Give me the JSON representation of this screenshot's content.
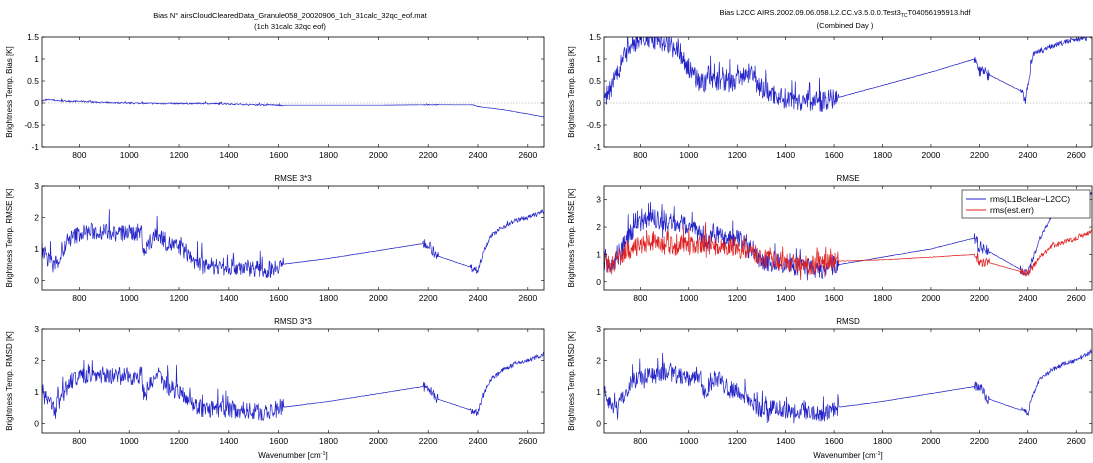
{
  "figure": {
    "left_title": "Bias N° airsCloudClearedData_Granule058_20020906_1ch_31calc_32qc_eof.mat",
    "left_subtitle": "(1ch 31calc 32qc eof)",
    "right_title": "Bias L2CC AIRS.2002.09.06.058.L2.CC.v3.5.0.0.Test3",
    "right_title_sub": "TC",
    "right_title_end": "T04056195913.hdf",
    "right_subtitle": "(Combined Day )",
    "xlabel": "Wavenumber [cm",
    "xlabel_sup": "-1",
    "xlabel_end": "]"
  },
  "colors": {
    "blue": "#2323c8",
    "red": "#e02020",
    "zero_line": "#9a9a9a"
  },
  "chart_data": [
    {
      "type": "line",
      "title": "",
      "ylabel": "Brightness Temp. Bias [K]",
      "xlim": [
        650,
        2665
      ],
      "ylim": [
        -1,
        1.5
      ],
      "xticks": [
        800,
        1000,
        1200,
        1400,
        1600,
        1800,
        2000,
        2200,
        2400,
        2600
      ],
      "yticks": [
        -1,
        -0.5,
        0,
        0.5,
        1,
        1.5
      ],
      "ytick_labels": [
        "-1",
        "-0.5",
        "0",
        "0.5",
        "1",
        "1.5"
      ],
      "zero_line": true,
      "series": [
        {
          "color": "blue",
          "noise": 0.02,
          "x": [
            650,
            680,
            700,
            750,
            800,
            900,
            1000,
            1100,
            1200,
            1300,
            1400,
            1500,
            1600,
            1800,
            2000,
            2200,
            2380,
            2400,
            2500,
            2600,
            2665
          ],
          "values": [
            0.05,
            0.08,
            0.06,
            0.04,
            0.04,
            0.01,
            0.0,
            -0.01,
            -0.01,
            -0.01,
            -0.02,
            -0.04,
            -0.05,
            -0.05,
            -0.05,
            -0.04,
            -0.04,
            -0.08,
            -0.15,
            -0.25,
            -0.32
          ]
        }
      ]
    },
    {
      "type": "line",
      "title": "RMSE 3*3",
      "ylabel": "Brightness Temp. RMSE [K]",
      "xlim": [
        650,
        2665
      ],
      "ylim": [
        -0.3,
        3
      ],
      "xticks": [
        800,
        1000,
        1200,
        1400,
        1600,
        1800,
        2000,
        2200,
        2400,
        2600
      ],
      "yticks": [
        0,
        1,
        2,
        3
      ],
      "ytick_labels": [
        "0",
        "1",
        "2",
        "3"
      ],
      "zero_line": false,
      "series": [
        {
          "color": "blue",
          "noise": 0.35,
          "x": [
            650,
            670,
            700,
            720,
            740,
            760,
            800,
            850,
            900,
            950,
            1000,
            1050,
            1060,
            1100,
            1130,
            1150,
            1210,
            1230,
            1260,
            1300,
            1400,
            1500,
            1550,
            1600,
            1800,
            2000,
            2200,
            2230,
            2380,
            2400,
            2420,
            2450,
            2500,
            2550,
            2600,
            2665
          ],
          "values": [
            1.0,
            0.7,
            0.5,
            0.7,
            1.0,
            1.3,
            1.5,
            1.55,
            1.55,
            1.5,
            1.5,
            1.55,
            0.9,
            1.4,
            1.4,
            1.2,
            1.0,
            0.9,
            0.6,
            0.45,
            0.45,
            0.4,
            0.3,
            0.5,
            0.7,
            0.95,
            1.2,
            0.8,
            0.4,
            0.3,
            0.9,
            1.4,
            1.7,
            1.9,
            2.0,
            2.2
          ]
        }
      ]
    },
    {
      "type": "line",
      "title": "RMSD 3*3",
      "ylabel": "Brightness Temp. RMSD [K]",
      "xlim": [
        650,
        2665
      ],
      "ylim": [
        -0.3,
        3
      ],
      "xticks": [
        800,
        1000,
        1200,
        1400,
        1600,
        1800,
        2000,
        2200,
        2400,
        2600
      ],
      "yticks": [
        0,
        1,
        2,
        3
      ],
      "ytick_labels": [
        "0",
        "1",
        "2",
        "3"
      ],
      "zero_line": false,
      "series": [
        {
          "color": "blue",
          "noise": 0.35,
          "x": [
            650,
            670,
            700,
            720,
            740,
            760,
            800,
            850,
            900,
            950,
            1000,
            1050,
            1060,
            1100,
            1130,
            1150,
            1210,
            1230,
            1260,
            1300,
            1400,
            1500,
            1550,
            1600,
            1800,
            2000,
            2200,
            2230,
            2380,
            2400,
            2420,
            2450,
            2500,
            2550,
            2600,
            2665
          ],
          "values": [
            1.0,
            0.7,
            0.5,
            0.7,
            1.0,
            1.3,
            1.5,
            1.55,
            1.55,
            1.5,
            1.5,
            1.55,
            0.9,
            1.4,
            1.4,
            1.2,
            1.0,
            0.9,
            0.6,
            0.45,
            0.45,
            0.4,
            0.3,
            0.5,
            0.7,
            0.95,
            1.2,
            0.8,
            0.4,
            0.3,
            0.9,
            1.4,
            1.7,
            1.9,
            2.0,
            2.2
          ]
        }
      ]
    },
    {
      "type": "line",
      "title": "",
      "ylabel": "Brightness Temp. Bias [K]",
      "xlim": [
        650,
        2665
      ],
      "ylim": [
        -1,
        1.5
      ],
      "xticks": [
        800,
        1000,
        1200,
        1400,
        1600,
        1800,
        2000,
        2200,
        2400,
        2600
      ],
      "yticks": [
        -1,
        -0.5,
        0,
        0.5,
        1,
        1.5
      ],
      "ytick_labels": [
        "-1",
        "-0.5",
        "0",
        "0.5",
        "1",
        "1.5"
      ],
      "zero_line": true,
      "series": [
        {
          "color": "blue",
          "noise": 0.3,
          "x": [
            650,
            680,
            700,
            730,
            760,
            800,
            830,
            900,
            950,
            1000,
            1050,
            1100,
            1150,
            1200,
            1230,
            1260,
            1300,
            1400,
            1500,
            1550,
            1600,
            1800,
            2000,
            2180,
            2200,
            2380,
            2390,
            2420,
            2500,
            2600,
            2665
          ],
          "values": [
            0.1,
            0.3,
            0.6,
            1.0,
            1.3,
            1.45,
            1.45,
            1.4,
            1.3,
            0.8,
            0.45,
            0.55,
            0.45,
            0.5,
            0.7,
            0.6,
            0.3,
            0.1,
            0.05,
            0.03,
            0.1,
            0.4,
            0.7,
            1.0,
            0.75,
            0.25,
            0.05,
            1.1,
            1.3,
            1.45,
            1.5
          ]
        }
      ]
    },
    {
      "type": "line",
      "title": "RMSE",
      "ylabel": "Brightness Temp. RMSE [K]",
      "xlim": [
        650,
        2665
      ],
      "ylim": [
        -0.3,
        3.5
      ],
      "xticks": [
        800,
        1000,
        1200,
        1400,
        1600,
        1800,
        2000,
        2200,
        2400,
        2600
      ],
      "yticks": [
        0,
        1,
        2,
        3
      ],
      "ytick_labels": [
        "0",
        "1",
        "2",
        "3"
      ],
      "zero_line": false,
      "legend": {
        "position": "top-right",
        "entries": [
          "rms(L1Bclear−L2CC)",
          "rms(est.err)"
        ]
      },
      "series": [
        {
          "name": "rms(L1Bclear−L2CC)",
          "color": "blue",
          "noise": 0.45,
          "x": [
            650,
            680,
            700,
            730,
            760,
            800,
            850,
            900,
            950,
            1000,
            1050,
            1080,
            1100,
            1150,
            1200,
            1250,
            1300,
            1400,
            1500,
            1550,
            1600,
            1800,
            2000,
            2180,
            2200,
            2380,
            2400,
            2450,
            2500,
            2600,
            2665
          ],
          "values": [
            0.8,
            0.5,
            0.8,
            1.3,
            1.8,
            2.2,
            2.3,
            2.2,
            2.1,
            2.1,
            1.7,
            1.4,
            1.8,
            1.5,
            1.6,
            1.2,
            0.8,
            0.6,
            0.5,
            0.45,
            0.6,
            0.9,
            1.2,
            1.6,
            1.3,
            0.4,
            0.3,
            1.6,
            2.4,
            2.9,
            3.2
          ]
        },
        {
          "name": "rms(est.err)",
          "color": "red",
          "noise": 0.45,
          "x": [
            650,
            680,
            700,
            730,
            760,
            800,
            850,
            900,
            950,
            1000,
            1050,
            1100,
            1150,
            1200,
            1250,
            1300,
            1400,
            1500,
            1600,
            1800,
            2000,
            2180,
            2200,
            2380,
            2400,
            2450,
            2500,
            2600,
            2665
          ],
          "values": [
            0.7,
            0.6,
            0.8,
            1.0,
            1.2,
            1.3,
            1.4,
            1.35,
            1.3,
            1.3,
            1.4,
            1.3,
            1.25,
            1.2,
            1.1,
            0.9,
            0.7,
            0.6,
            0.75,
            0.8,
            0.9,
            1.0,
            0.8,
            0.35,
            0.3,
            0.9,
            1.3,
            1.6,
            1.85
          ]
        }
      ]
    },
    {
      "type": "line",
      "title": "RMSD",
      "ylabel": "Brightness Temp. RMSD [K]",
      "xlim": [
        650,
        2665
      ],
      "ylim": [
        -0.3,
        3
      ],
      "xticks": [
        800,
        1000,
        1200,
        1400,
        1600,
        1800,
        2000,
        2200,
        2400,
        2600
      ],
      "yticks": [
        0,
        1,
        2,
        3
      ],
      "ytick_labels": [
        "0",
        "1",
        "2",
        "3"
      ],
      "zero_line": false,
      "series": [
        {
          "color": "blue",
          "noise": 0.35,
          "x": [
            650,
            670,
            700,
            720,
            740,
            760,
            800,
            850,
            900,
            950,
            1000,
            1050,
            1060,
            1100,
            1130,
            1150,
            1210,
            1230,
            1260,
            1300,
            1400,
            1500,
            1550,
            1600,
            1800,
            2000,
            2200,
            2230,
            2380,
            2400,
            2420,
            2450,
            2500,
            2550,
            2600,
            2665
          ],
          "values": [
            1.0,
            0.7,
            0.5,
            0.7,
            1.0,
            1.3,
            1.5,
            1.55,
            1.55,
            1.5,
            1.5,
            1.55,
            0.9,
            1.4,
            1.4,
            1.2,
            1.0,
            0.9,
            0.6,
            0.45,
            0.45,
            0.4,
            0.3,
            0.5,
            0.7,
            0.95,
            1.2,
            0.8,
            0.4,
            0.3,
            0.9,
            1.4,
            1.7,
            1.9,
            2.0,
            2.3
          ]
        }
      ]
    }
  ]
}
